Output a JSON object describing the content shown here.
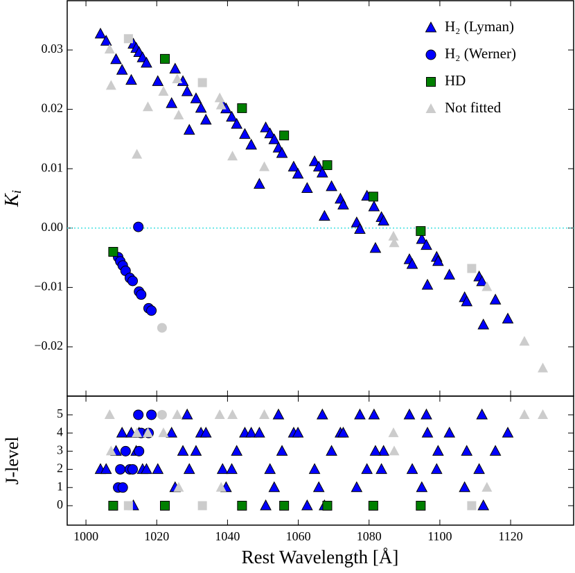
{
  "chart_data": {
    "type": "scatter",
    "xlabel": "Rest Wavelength [Å]",
    "ylabel": "K",
    "ylabel_sub": "i",
    "xlim": [
      994.7,
      1137.8
    ],
    "xticks": [
      1000,
      1020,
      1040,
      1060,
      1080,
      1100,
      1120
    ],
    "ylim": [
      -0.0283,
      0.0383
    ],
    "yticks": [
      {
        "value": -0.02,
        "label": "−0.02"
      },
      {
        "value": -0.01,
        "label": "−0.01"
      },
      {
        "value": 0,
        "label": "0.00"
      },
      {
        "value": 0.01,
        "label": "0.01"
      },
      {
        "value": 0.02,
        "label": "0.02"
      },
      {
        "value": 0.03,
        "label": "0.03"
      }
    ],
    "hline": 0,
    "hline_color": "#40e0e0",
    "legend": "upper right",
    "lower_panel": {
      "ylabel": "J-level",
      "ylim": [
        -1.07,
        6.03
      ],
      "yticks": [
        0,
        1,
        2,
        3,
        4,
        5
      ]
    },
    "series": [
      {
        "name": "H₂ (Lyman)",
        "color": "#0000ff",
        "marker": "triangle",
        "x": [
          1004.1,
          1005.7,
          1013.4,
          1014.2,
          1015.0,
          1016.0,
          1017.1,
          1008.5,
          1010.2,
          1012.8,
          1020.3,
          1025.2,
          1027.4,
          1028.6,
          1024.2,
          1031.1,
          1032.5,
          1033.9,
          1029.2,
          1038.6,
          1039.6,
          1041.2,
          1042.6,
          1044.9,
          1046.7,
          1050.8,
          1052.0,
          1053.2,
          1054.4,
          1055.4,
          1049.0,
          1058.7,
          1059.9,
          1062.5,
          1064.6,
          1065.8,
          1066.8,
          1069.4,
          1071.9,
          1072.7,
          1067.4,
          1076.5,
          1077.4,
          1079.4,
          1081.4,
          1083.5,
          1084.1,
          1081.8,
          1091.4,
          1092.2,
          1094.9,
          1096.2,
          1096.5,
          1099.1,
          1099.5,
          1102.7,
          1107.0,
          1107.6,
          1111.1,
          1111.9,
          1112.3,
          1115.7,
          1119.2
        ],
        "y": [
          0.0327,
          0.0315,
          0.031,
          0.0303,
          0.0296,
          0.0287,
          0.0278,
          0.0284,
          0.0266,
          0.0249,
          0.0247,
          0.0268,
          0.0247,
          0.023,
          0.021,
          0.0218,
          0.0202,
          0.0182,
          0.0165,
          0.0208,
          0.0201,
          0.0187,
          0.0175,
          0.0158,
          0.014,
          0.0169,
          0.0159,
          0.0149,
          0.0135,
          0.0126,
          0.0074,
          0.0103,
          0.0091,
          0.0067,
          0.0112,
          0.0103,
          0.0093,
          0.007,
          0.0049,
          0.0039,
          0.002,
          0.0009,
          -0.0002,
          0.0054,
          0.0036,
          0.0018,
          0.0012,
          -0.0034,
          -0.0053,
          -0.0061,
          -0.0019,
          -0.0029,
          -0.0096,
          -0.0049,
          -0.0056,
          -0.0079,
          -0.0117,
          -0.0124,
          -0.0082,
          -0.009,
          -0.0163,
          -0.0121,
          -0.0153
        ],
        "j": [
          2,
          2,
          0,
          3,
          4,
          2,
          2,
          3,
          4,
          4,
          2,
          1,
          3,
          5,
          4,
          3,
          4,
          4,
          2,
          2,
          1,
          2,
          3,
          4,
          4,
          0,
          2,
          1,
          5,
          3,
          4,
          4,
          4,
          0,
          2,
          1,
          5,
          3,
          4,
          4,
          0,
          1,
          5,
          2,
          5,
          2,
          3,
          3,
          5,
          2,
          1,
          5,
          4,
          2,
          3,
          4,
          1,
          3,
          2,
          5,
          0,
          3,
          4
        ]
      },
      {
        "name": "H₂ (Werner)",
        "color": "#0000ff",
        "marker": "circle",
        "x": [
          1009.1,
          1009.7,
          1010.4,
          1011.2,
          1012.4,
          1013.2,
          1015.0,
          1015.6,
          1017.7,
          1018.5,
          1014.8
        ],
        "y": [
          -0.0049,
          -0.0056,
          -0.0063,
          -0.0072,
          -0.0084,
          -0.0089,
          -0.0107,
          -0.0112,
          -0.0135,
          -0.0139,
          0.0002
        ],
        "j": [
          1,
          2,
          1,
          3,
          2,
          2,
          3,
          4,
          4,
          5,
          5
        ]
      },
      {
        "name": "HD",
        "color": "#007f00",
        "marker": "square",
        "x": [
          1007.7,
          1022.3,
          1044.1,
          1056.0,
          1068.2,
          1081.2,
          1094.6
        ],
        "y": [
          -0.004,
          0.0285,
          0.0202,
          0.0156,
          0.0106,
          0.0053,
          -0.0005
        ],
        "j": [
          0,
          0,
          0,
          0,
          0,
          0,
          0
        ]
      },
      {
        "name": "Not fitted",
        "color": "#cccccc",
        "marker": "triangle",
        "markers": [
          "triangle",
          "triangle",
          "triangle",
          "triangle",
          "triangle",
          "triangle",
          "triangle",
          "triangle",
          "triangle",
          "triangle",
          "triangle",
          "triangle",
          "triangle",
          "triangle",
          "triangle",
          "triangle",
          "square",
          "square",
          "square",
          "circle"
        ],
        "x": [
          1006.7,
          1007.1,
          1014.4,
          1017.5,
          1021.9,
          1025.8,
          1026.2,
          1037.8,
          1038.2,
          1041.4,
          1050.4,
          1086.9,
          1087.1,
          1113.3,
          1123.9,
          1129.1,
          1012.0,
          1032.9,
          1109.0,
          1021.5
        ],
        "y": [
          0.0301,
          0.024,
          0.0124,
          0.0204,
          0.023,
          0.0251,
          0.019,
          0.0219,
          0.0207,
          0.0121,
          0.0103,
          -0.0014,
          -0.0025,
          -0.0099,
          -0.0191,
          -0.0236,
          0.0319,
          0.0245,
          -0.0068,
          -0.0168
        ],
        "j": [
          5,
          3,
          4,
          4,
          4,
          5,
          1,
          5,
          1,
          5,
          5,
          4,
          3,
          1,
          5,
          5,
          0,
          0,
          0,
          5
        ]
      }
    ]
  }
}
